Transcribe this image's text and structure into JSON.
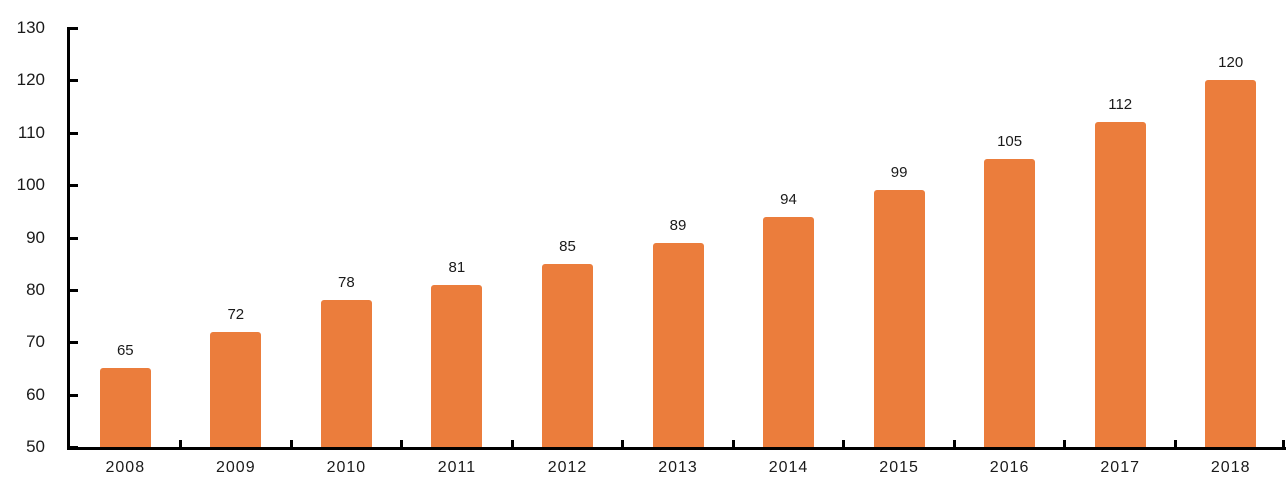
{
  "chart_data": {
    "type": "bar",
    "categories": [
      "2008",
      "2009",
      "2010",
      "2011",
      "2012",
      "2013",
      "2014",
      "2015",
      "2016",
      "2017",
      "2018"
    ],
    "values": [
      65,
      72,
      78,
      81,
      85,
      89,
      94,
      99,
      105,
      112,
      120
    ],
    "title": "",
    "xlabel": "",
    "ylabel": "",
    "ylim": [
      50,
      130
    ],
    "yticks": [
      50,
      60,
      70,
      80,
      90,
      100,
      110,
      120,
      130
    ],
    "grid": false,
    "legend": "none",
    "data_labels": true,
    "colors": {
      "bar": "#EB7D3C",
      "axis": "#000000",
      "text": "#1A1A1A",
      "background": "#FFFFFF"
    }
  }
}
